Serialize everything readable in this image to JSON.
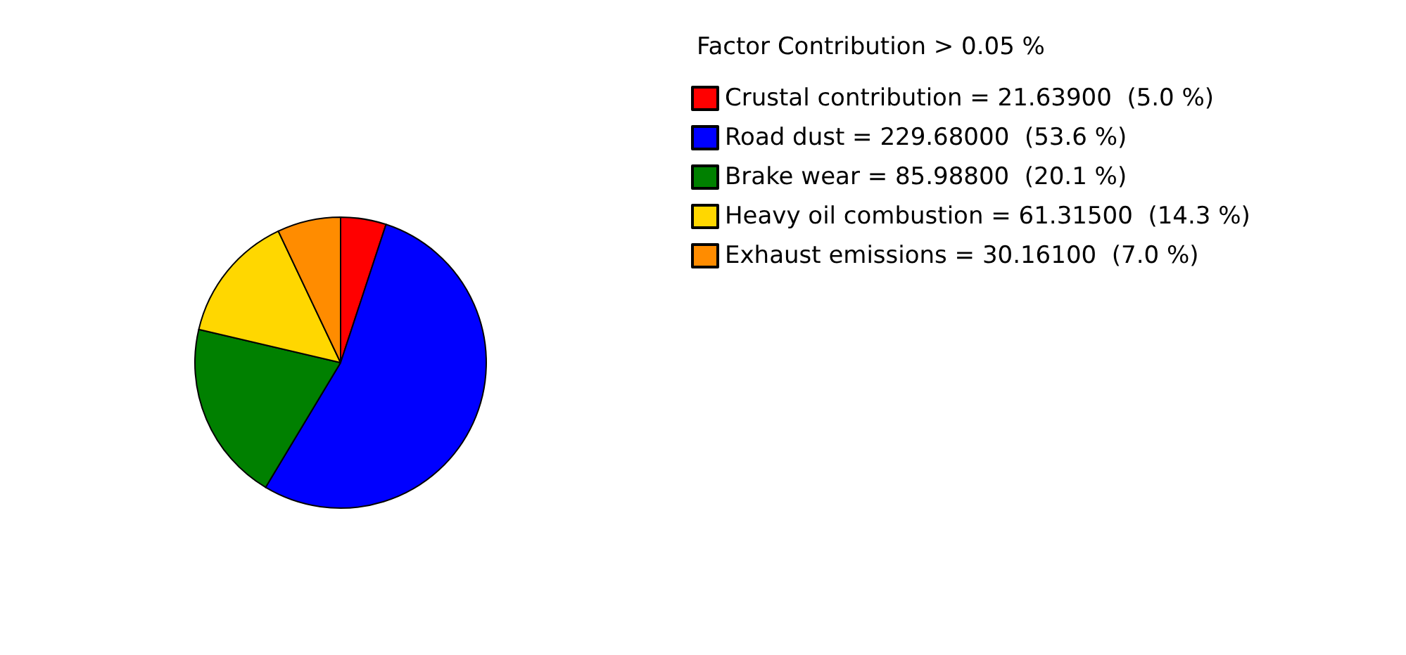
{
  "chart_data": {
    "type": "pie",
    "legend_title": "Factor Contribution > 0.05 %",
    "categories": [
      "Crustal contribution = 21.63900  (5.0 %)",
      "Road dust = 229.68000  (53.6 %)",
      "Brake wear = 85.98800  (20.1 %)",
      "Heavy oil combustion = 61.31500  (14.3 %)",
      "Exhaust emissions = 30.16100  (7.0 %)"
    ],
    "values": [
      21.639,
      229.68,
      85.988,
      61.315,
      30.161
    ],
    "colors": [
      "#ff0000",
      "#0000ff",
      "#008000",
      "#ffd700",
      "#ff8c00"
    ],
    "legend": "top right"
  }
}
